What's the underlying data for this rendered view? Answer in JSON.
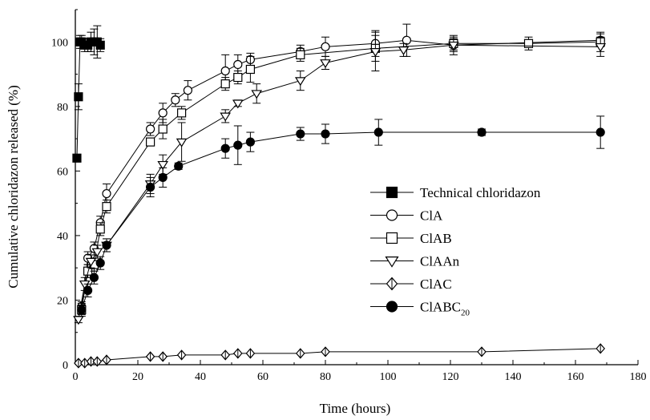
{
  "chart_data": {
    "type": "line",
    "xlabel": "Time (hours)",
    "ylabel": "Cumulative chloridazon released (%)",
    "xlim": [
      0,
      180
    ],
    "ylim": [
      0,
      110
    ],
    "xticks": [
      0,
      20,
      40,
      60,
      80,
      100,
      120,
      140,
      160,
      180
    ],
    "yticks": [
      0,
      20,
      40,
      60,
      80,
      100
    ],
    "grid": false,
    "legend_position": "center-right",
    "series": [
      {
        "name": "Technical chloridazon",
        "legend_main": "Technical chloridazon",
        "legend_sub": "",
        "marker": "square",
        "fill": "filled",
        "x": [
          0.5,
          1,
          1.5,
          2,
          3,
          4,
          5,
          6,
          7,
          8
        ],
        "y": [
          64,
          83,
          100,
          100,
          99,
          99,
          100,
          100,
          100,
          99
        ],
        "err": [
          0,
          4,
          2,
          2,
          2,
          2,
          3,
          4,
          5,
          2
        ]
      },
      {
        "name": "ClA",
        "legend_main": "ClA",
        "legend_sub": "",
        "marker": "circle",
        "fill": "open",
        "x": [
          2,
          4,
          6,
          8,
          10,
          24,
          28,
          32,
          36,
          48,
          52,
          56,
          72,
          80,
          96,
          106,
          121,
          168
        ],
        "y": [
          18,
          33,
          36,
          44,
          53,
          73,
          78,
          82,
          85,
          91,
          93,
          94.5,
          97,
          98.5,
          99.5,
          100.5,
          99,
          100.5
        ],
        "err": [
          1.5,
          2,
          2,
          2,
          3,
          2,
          3,
          2,
          3,
          5,
          3,
          2,
          2,
          3,
          4,
          5,
          2,
          2
        ]
      },
      {
        "name": "ClAB",
        "legend_main": "ClAB",
        "legend_sub": "",
        "marker": "square",
        "fill": "open",
        "x": [
          2,
          4,
          6,
          8,
          10,
          24,
          28,
          34,
          48,
          52,
          56,
          72,
          96,
          121,
          145,
          168
        ],
        "y": [
          17,
          29,
          31,
          42,
          49,
          69,
          73,
          78,
          87,
          89,
          91.5,
          96,
          98,
          99.5,
          99.5,
          100
        ],
        "err": [
          1.5,
          2,
          2,
          2,
          2,
          1,
          3,
          2,
          2,
          2,
          4,
          2,
          4,
          2,
          2,
          3
        ]
      },
      {
        "name": "ClAAn",
        "legend_main": "ClAAn",
        "legend_sub": "",
        "marker": "triangle-down",
        "fill": "open",
        "x": [
          1,
          3,
          5,
          7,
          10,
          24,
          28,
          34,
          48,
          52,
          58,
          72,
          80,
          96,
          105,
          121,
          168
        ],
        "y": [
          14,
          25,
          32,
          35,
          37,
          56,
          62,
          69,
          77,
          81,
          84,
          88,
          93.5,
          97,
          97.5,
          99,
          98.5
        ],
        "err": [
          1,
          2,
          2,
          2,
          2,
          3,
          3,
          6,
          2,
          1,
          3,
          3,
          2,
          6,
          2,
          3,
          3
        ]
      },
      {
        "name": "ClAC",
        "legend_main": "ClAC",
        "legend_sub": "",
        "marker": "diamond",
        "fill": "open",
        "x": [
          1,
          3,
          5,
          7,
          10,
          24,
          28,
          34,
          48,
          52,
          56,
          72,
          80,
          130,
          168
        ],
        "y": [
          0.5,
          0.5,
          1,
          1,
          1.5,
          2.5,
          2.5,
          3,
          3,
          3.5,
          3.5,
          3.5,
          4,
          4,
          5
        ],
        "err": [
          0,
          0,
          0,
          0,
          0,
          0,
          0,
          0,
          0,
          0,
          0,
          0,
          0,
          0,
          0
        ]
      },
      {
        "name": "ClABC20",
        "legend_main": "ClABC",
        "legend_sub": "20",
        "marker": "circle",
        "fill": "filled",
        "x": [
          2,
          4,
          6,
          8,
          10,
          24,
          28,
          33,
          48,
          52,
          56,
          72,
          80,
          97,
          130,
          168
        ],
        "y": [
          17,
          23,
          27,
          31.5,
          37,
          55,
          58,
          61.5,
          67,
          68,
          69,
          71.5,
          71.5,
          72,
          72,
          72
        ],
        "err": [
          2,
          2,
          2,
          2,
          2,
          3,
          3,
          1,
          3,
          6,
          3,
          2,
          3,
          4,
          1,
          5
        ]
      }
    ]
  }
}
